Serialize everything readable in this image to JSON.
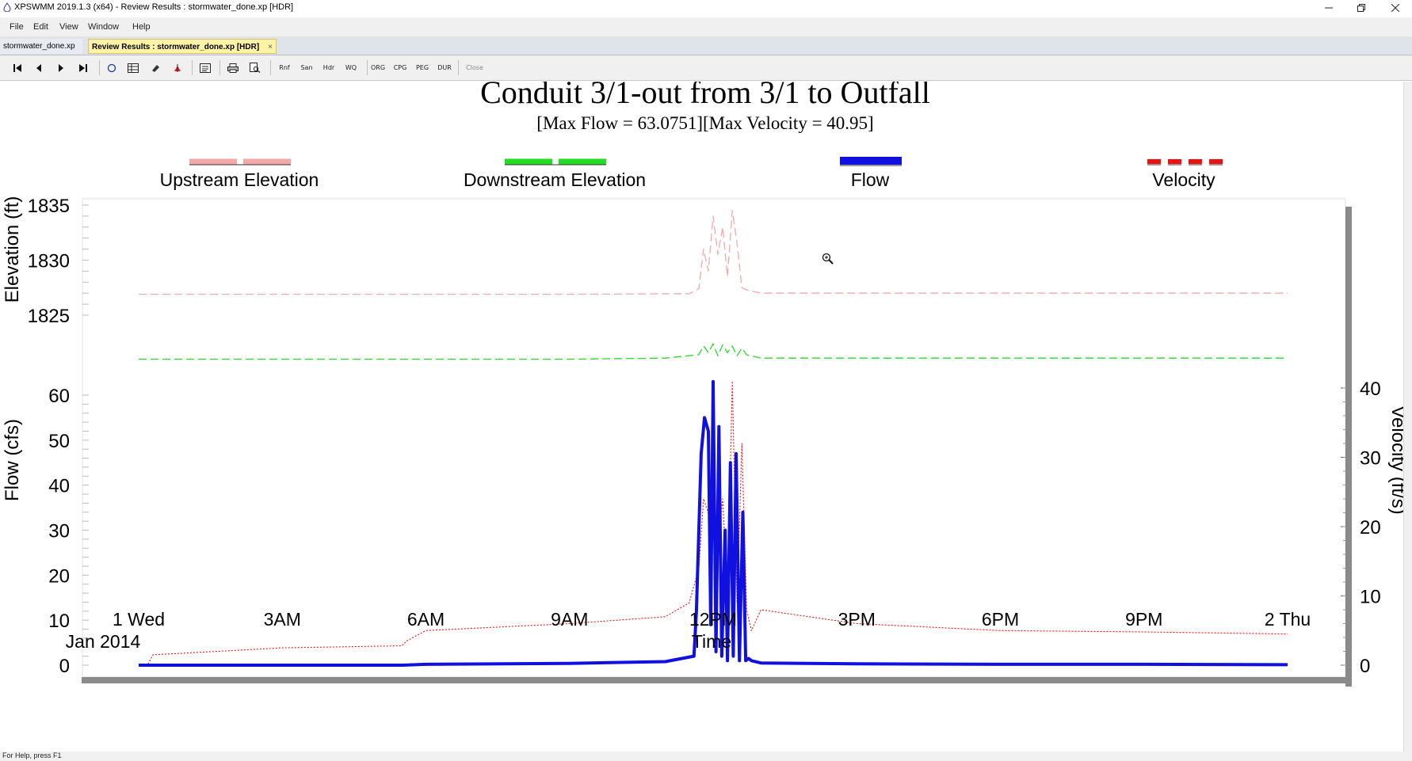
{
  "window": {
    "title": "XPSWMM 2019.1.3 (x64) - Review Results : stormwater_done.xp [HDR]",
    "controls": [
      "minimize",
      "restore",
      "close"
    ]
  },
  "menu": [
    {
      "label": "File"
    },
    {
      "label": "Edit"
    },
    {
      "label": "View"
    },
    {
      "label": "Window"
    },
    {
      "label": "Help"
    }
  ],
  "tabs": [
    {
      "label": "stormwater_done.xp",
      "active": false
    },
    {
      "label": "Review Results : stormwater_done.xp [HDR]",
      "active": true,
      "close": "×"
    }
  ],
  "toolbar": {
    "icons": [
      "first-icon",
      "previous-icon",
      "next-icon",
      "last-icon",
      "circle-icon",
      "table-icon",
      "eraser-icon",
      "pin-icon",
      "report-icon",
      "print-icon",
      "print-preview-icon"
    ],
    "text_buttons": [
      "Rnf",
      "San",
      "Hdr",
      "WQ",
      "ORG",
      "CPG",
      "PEG",
      "DUR",
      "Close"
    ]
  },
  "status": {
    "text": "For Help, press F1"
  },
  "chart_data": {
    "type": "line",
    "title": "Conduit 3/1-out from 3/1 to Outfall",
    "subtitle": "[Max Flow = 63.0751][Max Velocity = 40.95]",
    "legend": [
      {
        "name": "Upstream Elevation",
        "color": "#f4a8a8",
        "style": "dashed"
      },
      {
        "name": "Downstream Elevation",
        "color": "#22dd22",
        "style": "dashed"
      },
      {
        "name": "Flow",
        "color": "#1010e0",
        "style": "solid-thick"
      },
      {
        "name": "Velocity",
        "color": "#ee1111",
        "style": "dotted"
      }
    ],
    "xlabel": "Time",
    "x_ticks": [
      "1 Wed",
      "3AM",
      "6AM",
      "9AM",
      "12PM",
      "3PM",
      "6PM",
      "9PM",
      "2 Thu"
    ],
    "x_ticks_hours": [
      0,
      3,
      6,
      9,
      12,
      15,
      18,
      21,
      24
    ],
    "x_sub_label": "Jan 2014",
    "elevation_axis": {
      "label": "Elevation (ft)",
      "ticks": [
        "1835",
        "1830",
        "1825"
      ],
      "tick_values": [
        1835,
        1830,
        1825
      ],
      "ylim": [
        1825,
        1835
      ]
    },
    "flow_axis": {
      "label": "Flow (cfs)",
      "ticks": [
        "60",
        "50",
        "40",
        "30",
        "20",
        "10",
        "0"
      ],
      "tick_values": [
        60,
        50,
        40,
        30,
        20,
        10,
        0
      ],
      "ylim": [
        0,
        63
      ]
    },
    "velocity_axis": {
      "label": "Velocity (ft/s)",
      "ticks": [
        "40",
        "30",
        "20",
        "10",
        "0"
      ],
      "tick_values": [
        40,
        30,
        20,
        10,
        0
      ],
      "ylim": [
        0,
        40.95
      ]
    },
    "grid": true,
    "series": [
      {
        "name": "Upstream Elevation",
        "axis": "elevation",
        "x": [
          0,
          3,
          6,
          9,
          11.5,
          11.7,
          11.8,
          11.9,
          12.0,
          12.1,
          12.2,
          12.3,
          12.4,
          12.5,
          12.6,
          12.7,
          13.0,
          15,
          18,
          21,
          24
        ],
        "y": [
          1826.9,
          1826.9,
          1826.9,
          1826.9,
          1826.95,
          1827.4,
          1831,
          1829,
          1834,
          1830.5,
          1833,
          1828.5,
          1834.5,
          1831.5,
          1827.5,
          1827.3,
          1827.0,
          1827.0,
          1827.0,
          1827.0,
          1827.0
        ]
      },
      {
        "name": "Downstream Elevation",
        "axis": "elevation",
        "x": [
          0,
          3,
          6,
          9,
          11.0,
          11.7,
          11.8,
          11.9,
          12.0,
          12.1,
          12.2,
          12.3,
          12.4,
          12.5,
          12.6,
          12.7,
          13.0,
          15,
          18,
          21,
          24
        ],
        "y": [
          1821.0,
          1821.0,
          1821.0,
          1821.0,
          1821.1,
          1821.4,
          1822.2,
          1821.6,
          1822.4,
          1821.3,
          1822.3,
          1821.6,
          1822.2,
          1821.3,
          1822.0,
          1821.4,
          1821.1,
          1821.1,
          1821.1,
          1821.1,
          1821.1
        ]
      },
      {
        "name": "Flow",
        "axis": "flow",
        "x": [
          0,
          3,
          5.5,
          6,
          9,
          11,
          11.6,
          11.65,
          11.75,
          11.82,
          11.9,
          11.95,
          12.0,
          12.06,
          12.12,
          12.18,
          12.25,
          12.3,
          12.36,
          12.42,
          12.48,
          12.55,
          12.62,
          12.68,
          12.74,
          12.8,
          13.0,
          15,
          18,
          21,
          24
        ],
        "y": [
          0,
          0,
          0,
          0.2,
          0.4,
          0.8,
          2,
          12,
          47,
          55,
          52,
          9,
          63,
          3,
          53,
          2,
          30,
          1,
          45,
          2,
          47,
          1,
          34,
          1,
          1.5,
          1.0,
          0.5,
          0.3,
          0.2,
          0.2,
          0.1
        ]
      },
      {
        "name": "Velocity",
        "axis": "velocity",
        "x": [
          0,
          0.2,
          0.3,
          3,
          5.5,
          5.6,
          6,
          9,
          11,
          11.5,
          11.7,
          11.8,
          11.9,
          12.0,
          12.1,
          12.2,
          12.3,
          12.4,
          12.5,
          12.6,
          12.7,
          12.8,
          13.0,
          15,
          18,
          21,
          24
        ],
        "y": [
          0,
          0.2,
          1.5,
          2.5,
          2.8,
          3.5,
          5,
          6,
          7,
          9,
          14,
          24,
          22,
          24,
          18,
          24,
          10,
          41,
          9,
          32,
          8,
          5,
          8,
          6,
          5,
          4.8,
          4.5
        ]
      }
    ]
  }
}
